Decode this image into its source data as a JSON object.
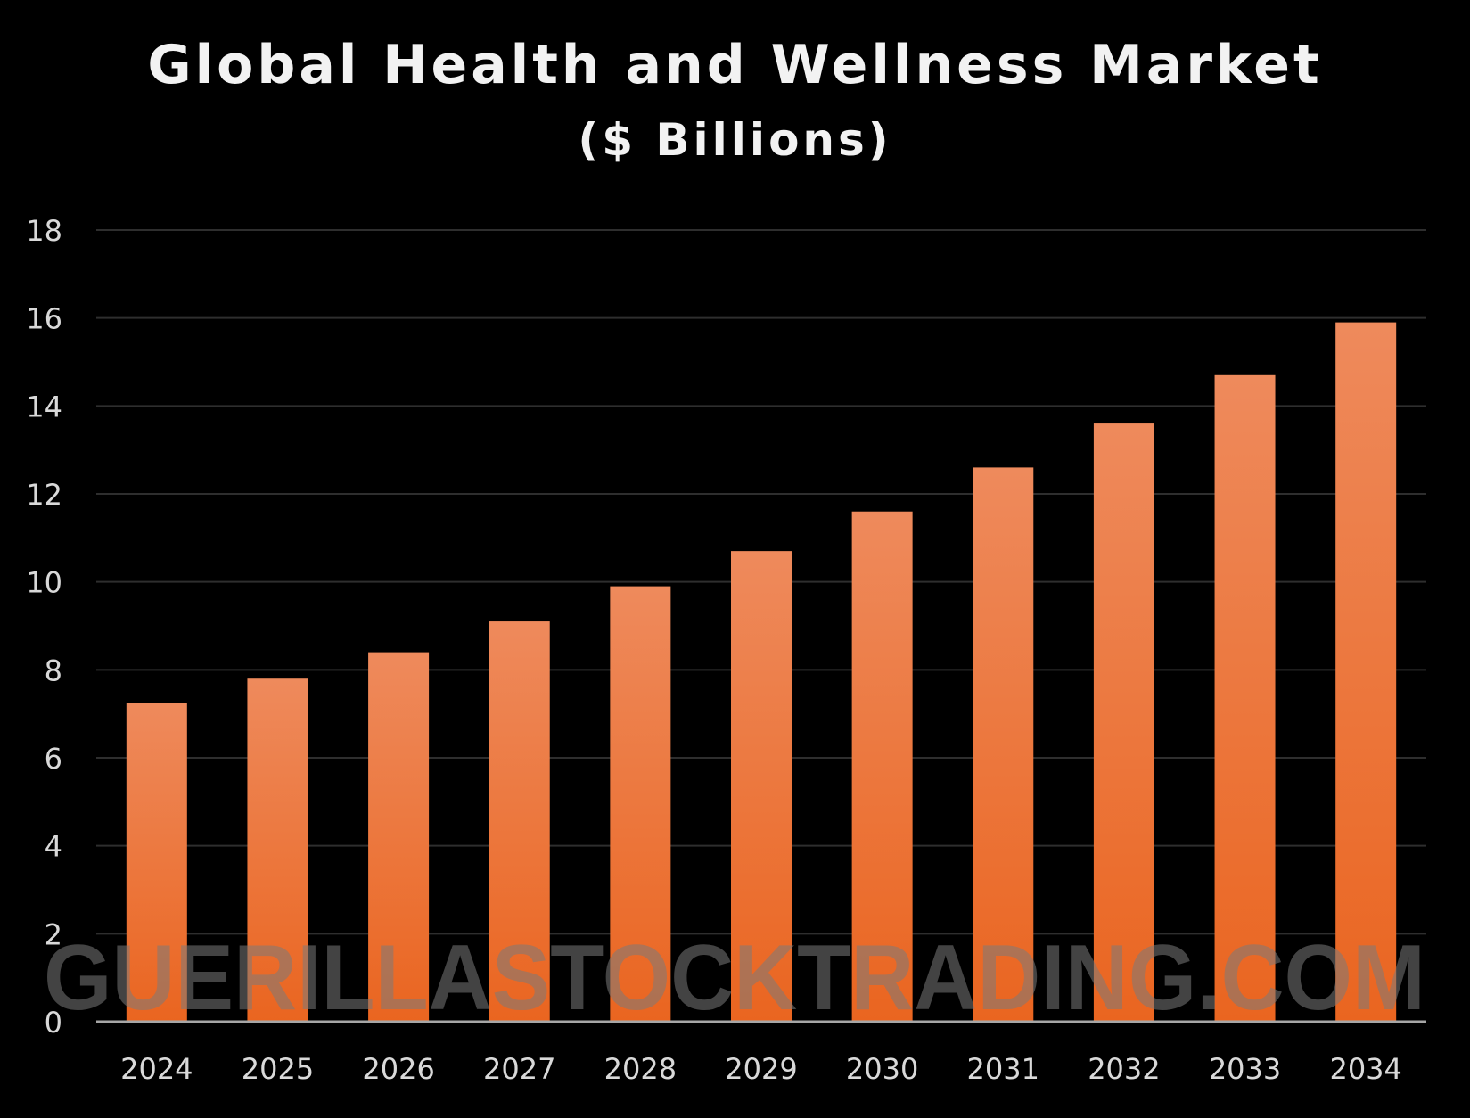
{
  "chart_data": {
    "type": "bar",
    "title": "Global Health and Wellness Market",
    "subtitle": "($ Billions)",
    "categories": [
      "2024",
      "2025",
      "2026",
      "2027",
      "2028",
      "2029",
      "2030",
      "2031",
      "2032",
      "2033",
      "2034"
    ],
    "values": [
      7.25,
      7.8,
      8.4,
      9.1,
      9.9,
      10.7,
      11.6,
      12.6,
      13.6,
      14.7,
      15.9
    ],
    "ylim": [
      0,
      18
    ],
    "yticks": [
      "0",
      "2",
      "4",
      "6",
      "8",
      "10",
      "12",
      "14",
      "16",
      "18"
    ],
    "xlabel": "",
    "ylabel": "",
    "grid": true,
    "legend": "none"
  },
  "watermark": "GUERILLASTOCKTRADING.COM",
  "colors": {
    "background": "#000000",
    "bar_top": "#ee8a5c",
    "bar_bottom": "#ea6520",
    "gridline": "#2e2e2e",
    "axis": "#a6a6a6",
    "text": "#d9d9d9"
  }
}
